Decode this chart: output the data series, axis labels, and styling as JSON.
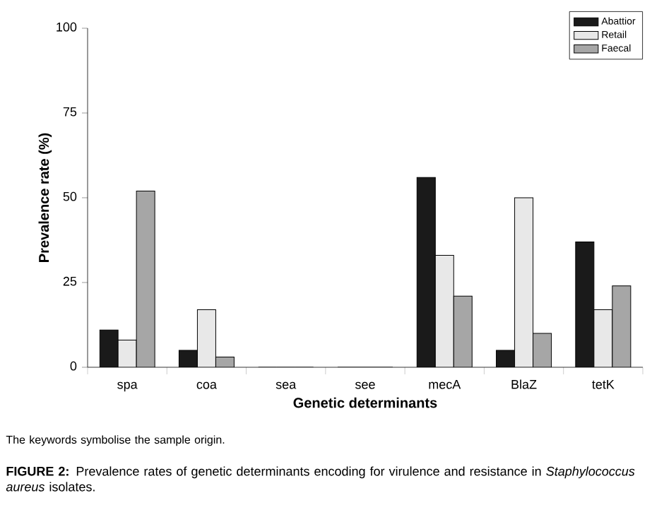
{
  "chart_data": {
    "type": "bar",
    "categories": [
      "spa",
      "coa",
      "sea",
      "see",
      "mecA",
      "BlaZ",
      "tetK"
    ],
    "xlabel": "Genetic determinants",
    "ylabel": "Prevalence rate  (%)",
    "ylim": [
      0,
      100
    ],
    "yticks": [
      0,
      25,
      50,
      75,
      100
    ],
    "series": [
      {
        "name": "Abattior",
        "color": "#1a1a1a",
        "values": [
          11,
          5,
          0,
          0,
          56,
          5,
          37
        ]
      },
      {
        "name": "Retail",
        "color": "#e8e8e8",
        "values": [
          8,
          17,
          0,
          0,
          33,
          50,
          17
        ]
      },
      {
        "name": "Faecal",
        "color": "#a6a6a6",
        "values": [
          52,
          3,
          0,
          0,
          21,
          10,
          24
        ]
      }
    ],
    "legend": "top right",
    "annotations": [
      "The keywords symbolise the sample origin.",
      "**FIGURE 2:** Prevalence rates of genetic determinants encoding for virulence and resistance in *Staphylococcus aureus* isolates."
    ]
  }
}
